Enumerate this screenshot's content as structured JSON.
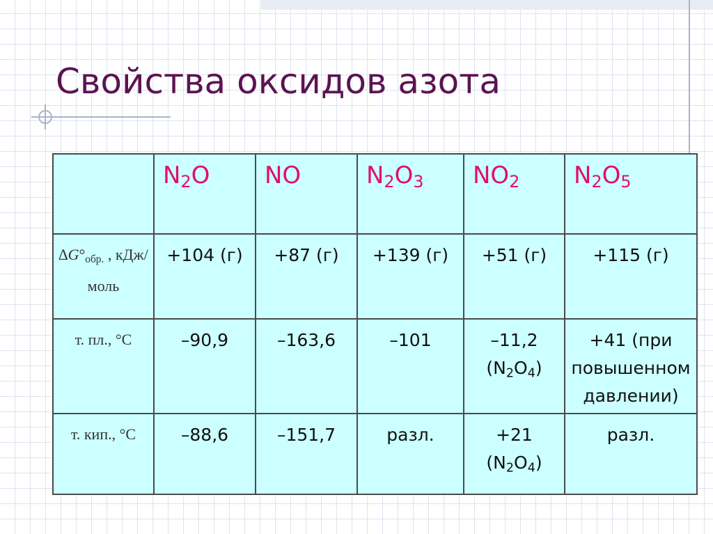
{
  "title": "Свойства оксидов азота",
  "table": {
    "header": [
      [
        "N",
        {
          "sub": "2"
        },
        "O"
      ],
      [
        "NO"
      ],
      [
        "N",
        {
          "sub": "2"
        },
        "O",
        {
          "sub": "3"
        }
      ],
      [
        "NO",
        {
          "sub": "2"
        }
      ],
      [
        "N",
        {
          "sub": "2"
        },
        "O",
        {
          "sub": "5"
        }
      ]
    ],
    "rows": [
      {
        "label": [
          "∆",
          {
            "i": "G"
          },
          "°",
          {
            "sub": "обр."
          },
          " , кДж/моль"
        ],
        "cells": [
          [
            "+104 (г)"
          ],
          [
            "+87 (г)"
          ],
          [
            "+139 (г)"
          ],
          [
            "+51 (г)"
          ],
          [
            "+115 (г)"
          ]
        ]
      },
      {
        "label": [
          "т. пл., °С"
        ],
        "cells": [
          [
            "–90,9"
          ],
          [
            "–163,6"
          ],
          [
            "–101"
          ],
          [
            "–11,2 (N",
            {
              "sub": "2"
            },
            "O",
            {
              "sub": "4"
            },
            ")"
          ],
          [
            "+41 (при повышенном давлении)"
          ]
        ]
      },
      {
        "label": [
          "т. кип., °С"
        ],
        "cells": [
          [
            "–88,6"
          ],
          [
            "–151,7"
          ],
          [
            "разл."
          ],
          [
            "+21 (N",
            {
              "sub": "2"
            },
            "O",
            {
              "sub": "4"
            },
            ")"
          ],
          [
            "разл."
          ]
        ]
      }
    ]
  }
}
